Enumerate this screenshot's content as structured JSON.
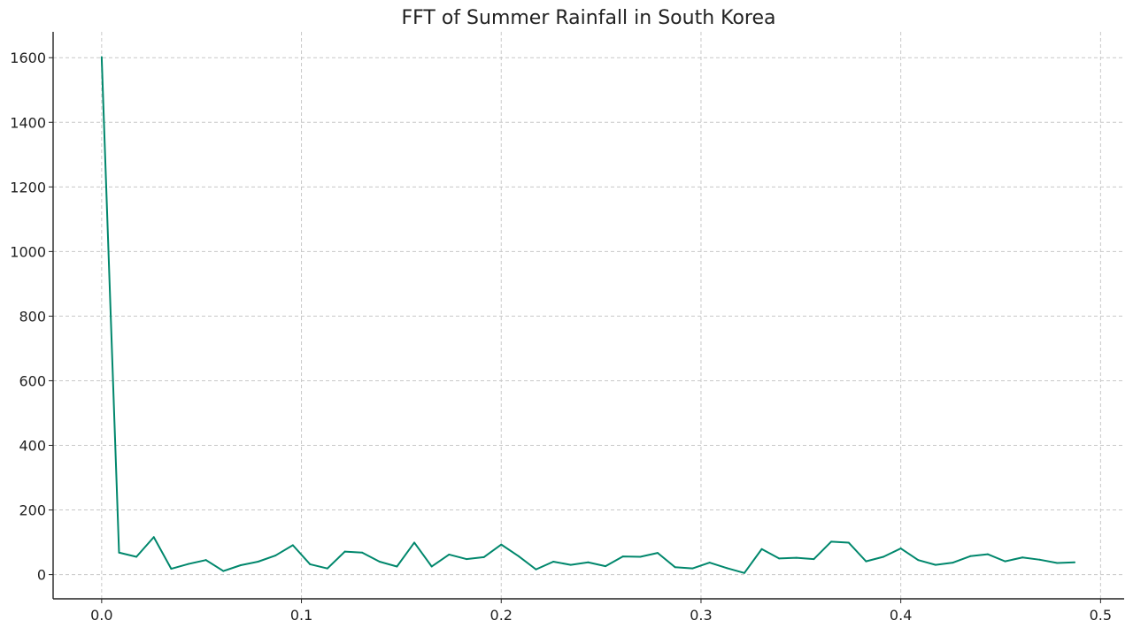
{
  "chart_data": {
    "type": "line",
    "title": "FFT of Summer Rainfall in South Korea",
    "xlabel": "",
    "ylabel": "",
    "xlim": [
      -0.0243,
      0.5118
    ],
    "ylim": [
      -75,
      1680
    ],
    "xticks": [
      0.0,
      0.1,
      0.2,
      0.3,
      0.4,
      0.5
    ],
    "xtick_labels": [
      "0.0",
      "0.1",
      "0.2",
      "0.3",
      "0.4",
      "0.5"
    ],
    "yticks": [
      0,
      200,
      400,
      600,
      800,
      1000,
      1200,
      1400,
      1600
    ],
    "ytick_labels": [
      "0",
      "200",
      "400",
      "600",
      "800",
      "1000",
      "1200",
      "1400",
      "1600"
    ],
    "grid": true,
    "color": "#00876c",
    "series": [
      {
        "x": [
          0.0,
          0.0087,
          0.0174,
          0.0261,
          0.0348,
          0.0435,
          0.0522,
          0.0609,
          0.0696,
          0.0783,
          0.087,
          0.0957,
          0.1043,
          0.113,
          0.1217,
          0.1304,
          0.1391,
          0.1478,
          0.1565,
          0.1652,
          0.1739,
          0.1826,
          0.1913,
          0.2,
          0.2087,
          0.2174,
          0.2261,
          0.2348,
          0.2435,
          0.2522,
          0.2609,
          0.2696,
          0.2783,
          0.287,
          0.2957,
          0.3043,
          0.313,
          0.3217,
          0.3304,
          0.3391,
          0.3478,
          0.3565,
          0.3652,
          0.3739,
          0.3826,
          0.3913,
          0.4,
          0.4087,
          0.4174,
          0.4261,
          0.4348,
          0.4435,
          0.4522,
          0.4609,
          0.4696,
          0.4783,
          0.487
        ],
        "values": [
          1602,
          68,
          55,
          116,
          18,
          33,
          45,
          11,
          29,
          40,
          59,
          91,
          32,
          19,
          71,
          68,
          40,
          25,
          99,
          25,
          62,
          48,
          54,
          93,
          57,
          16,
          40,
          30,
          38,
          26,
          56,
          55,
          67,
          23,
          19,
          37,
          20,
          5,
          79,
          50,
          52,
          48,
          102,
          99,
          41,
          55,
          81,
          45,
          30,
          37,
          57,
          63,
          41,
          53,
          46,
          36,
          38
        ]
      }
    ]
  }
}
